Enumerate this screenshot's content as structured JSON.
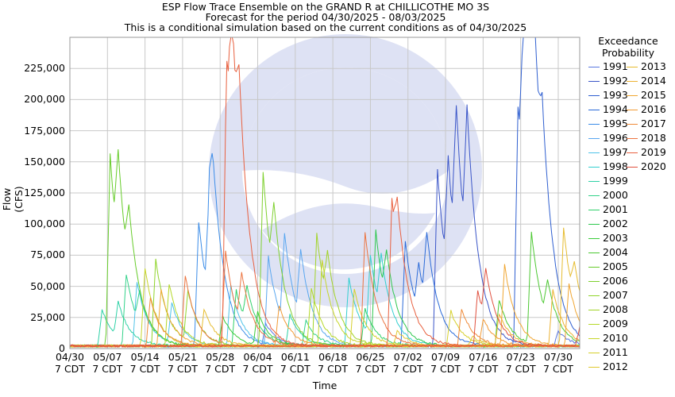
{
  "chart_data": {
    "type": "line",
    "title": "ESP Flow Trace Ensemble on the GRAND R at CHILLICOTHE MO 3S",
    "subtitle": "Forecast for the period 04/30/2025 - 08/03/2025",
    "subtitle2": "This is a conditional simulation based on the current conditions as of 04/30/2025",
    "xlabel": "Time",
    "ylabel": "Flow (CFS)",
    "ylim": [
      0,
      250000
    ],
    "xlim_days": [
      0,
      95
    ],
    "grid": true,
    "legend_title": "Exceedance\nProbability",
    "legend_title_line1": "Exceedance",
    "legend_title_line2": "Probability",
    "legend_placement": "right",
    "x_ticks": [
      {
        "day": 0,
        "line1": "04/30",
        "line2": "7 CDT"
      },
      {
        "day": 7,
        "line1": "05/07",
        "line2": "7 CDT"
      },
      {
        "day": 14,
        "line1": "05/14",
        "line2": "7 CDT"
      },
      {
        "day": 21,
        "line1": "05/21",
        "line2": "7 CDT"
      },
      {
        "day": 28,
        "line1": "05/28",
        "line2": "7 CDT"
      },
      {
        "day": 35,
        "line1": "06/04",
        "line2": "7 CDT"
      },
      {
        "day": 42,
        "line1": "06/11",
        "line2": "7 CDT"
      },
      {
        "day": 49,
        "line1": "06/18",
        "line2": "7 CDT"
      },
      {
        "day": 56,
        "line1": "06/25",
        "line2": "7 CDT"
      },
      {
        "day": 63,
        "line1": "07/02",
        "line2": "7 CDT"
      },
      {
        "day": 70,
        "line1": "07/09",
        "line2": "7 CDT"
      },
      {
        "day": 77,
        "line1": "07/16",
        "line2": "7 CDT"
      },
      {
        "day": 84,
        "line1": "07/23",
        "line2": "7 CDT"
      },
      {
        "day": 91,
        "line1": "07/30",
        "line2": "7 CDT"
      }
    ],
    "y_ticks": [
      {
        "value": 0,
        "label": "0"
      },
      {
        "value": 25000,
        "label": "25,000"
      },
      {
        "value": 50000,
        "label": "50,000"
      },
      {
        "value": 75000,
        "label": "75,000"
      },
      {
        "value": 100000,
        "label": "100,000"
      },
      {
        "value": 125000,
        "label": "125,000"
      },
      {
        "value": 150000,
        "label": "150,000"
      },
      {
        "value": 175000,
        "label": "175,000"
      },
      {
        "value": 200000,
        "label": "200,000"
      },
      {
        "value": 225000,
        "label": "225,000"
      }
    ],
    "series": [
      {
        "name": "1991",
        "color": "#5a78e0",
        "peaks": [
          [
            36.5,
            18000
          ],
          [
            91,
            12000
          ]
        ]
      },
      {
        "name": "1992",
        "color": "#3a55c8",
        "peaks": [
          [
            68.5,
            142000
          ],
          [
            70.5,
            95000
          ],
          [
            72,
            117000
          ],
          [
            74,
            115000
          ]
        ]
      },
      {
        "name": "1993",
        "color": "#2f5fd0",
        "peaks": [
          [
            83.5,
            193000
          ],
          [
            84.5,
            140000
          ],
          [
            85.2,
            167000
          ],
          [
            86.5,
            85000
          ],
          [
            88,
            60000
          ]
        ]
      },
      {
        "name": "1994",
        "color": "#2a6ad8",
        "peaks": [
          [
            62.5,
            84000
          ],
          [
            65,
            40000
          ],
          [
            66.5,
            58000
          ]
        ]
      },
      {
        "name": "1995",
        "color": "#3b8ce8",
        "peaks": [
          [
            24,
            100000
          ],
          [
            26,
            88000
          ],
          [
            26.6,
            60000
          ]
        ]
      },
      {
        "name": "1996",
        "color": "#58a6f0",
        "peaks": [
          [
            37,
            72000
          ],
          [
            40,
            73000
          ],
          [
            43,
            55000
          ]
        ]
      },
      {
        "name": "1997",
        "color": "#4fc3e8",
        "peaks": [
          [
            12.5,
            52000
          ],
          [
            19,
            32000
          ],
          [
            30,
            48000
          ]
        ]
      },
      {
        "name": "1998",
        "color": "#33cfd0",
        "peaks": [
          [
            52,
            55000
          ],
          [
            56,
            64000
          ],
          [
            58,
            45000
          ]
        ]
      },
      {
        "name": "1999",
        "color": "#2ed1a6",
        "peaks": [
          [
            6,
            30000
          ],
          [
            9,
            28000
          ],
          [
            41,
            25000
          ]
        ]
      },
      {
        "name": "2000",
        "color": "#33d28a",
        "peaks": [
          [
            10.5,
            58000
          ],
          [
            13,
            26000
          ],
          [
            44,
            20000
          ]
        ]
      },
      {
        "name": "2001",
        "color": "#30d06a",
        "peaks": [
          [
            31,
            45000
          ],
          [
            33,
            30000
          ],
          [
            55,
            30000
          ]
        ]
      },
      {
        "name": "2002",
        "color": "#2ec84e",
        "peaks": [
          [
            57,
            93000
          ],
          [
            59,
            40000
          ]
        ]
      },
      {
        "name": "2003",
        "color": "#3acc3a",
        "peaks": [
          [
            28.5,
            24000
          ],
          [
            35,
            26000
          ]
        ]
      },
      {
        "name": "2004",
        "color": "#4cc832",
        "peaks": [
          [
            80,
            37000
          ],
          [
            86,
            90000
          ],
          [
            89,
            30000
          ]
        ]
      },
      {
        "name": "2005",
        "color": "#66cc2a",
        "peaks": [
          [
            7.5,
            155000
          ],
          [
            9,
            80000
          ],
          [
            11,
            50000
          ]
        ]
      },
      {
        "name": "2006",
        "color": "#7ed02e",
        "peaks": [
          [
            36,
            140000
          ],
          [
            38,
            60000
          ]
        ]
      },
      {
        "name": "2007",
        "color": "#8fd42a",
        "peaks": [
          [
            16,
            70000
          ],
          [
            22,
            40000
          ]
        ]
      },
      {
        "name": "2008",
        "color": "#a2d428",
        "peaks": [
          [
            46,
            91000
          ],
          [
            48,
            40000
          ]
        ]
      },
      {
        "name": "2009",
        "color": "#b4d828",
        "peaks": [
          [
            18.5,
            50000
          ],
          [
            45,
            47000
          ]
        ]
      },
      {
        "name": "2010",
        "color": "#c7d52a",
        "peaks": [
          [
            14,
            63000
          ],
          [
            47,
            70000
          ]
        ]
      },
      {
        "name": "2011",
        "color": "#d6d02c",
        "peaks": [
          [
            53,
            46000
          ],
          [
            71,
            28000
          ]
        ]
      },
      {
        "name": "2012",
        "color": "#e0c82e",
        "peaks": [
          [
            61,
            12000
          ],
          [
            75,
            8000
          ]
        ]
      },
      {
        "name": "2013",
        "color": "#e6bc30",
        "peaks": [
          [
            25,
            30000
          ],
          [
            92,
            95000
          ],
          [
            94,
            30000
          ]
        ]
      },
      {
        "name": "2014",
        "color": "#ecb232",
        "peaks": [
          [
            80,
            26000
          ],
          [
            90,
            45000
          ]
        ]
      },
      {
        "name": "2015",
        "color": "#f0a632",
        "peaks": [
          [
            17,
            45000
          ],
          [
            81,
            65000
          ],
          [
            93,
            50000
          ]
        ]
      },
      {
        "name": "2016",
        "color": "#f29a34",
        "peaks": [
          [
            39,
            33000
          ],
          [
            77,
            22000
          ]
        ]
      },
      {
        "name": "2017",
        "color": "#ef8a38",
        "peaks": [
          [
            15,
            38000
          ],
          [
            73,
            30000
          ]
        ]
      },
      {
        "name": "2018",
        "color": "#ec7440",
        "peaks": [
          [
            21.5,
            57000
          ],
          [
            29,
            75000
          ],
          [
            32,
            40000
          ],
          [
            55,
            92000
          ]
        ]
      },
      {
        "name": "2019",
        "color": "#e8603f",
        "peaks": [
          [
            29.2,
            235000
          ],
          [
            30.2,
            130000
          ],
          [
            31.5,
            72000
          ],
          [
            60,
            118000
          ],
          [
            61,
            45000
          ]
        ]
      },
      {
        "name": "2020",
        "color": "#e0503e",
        "peaks": [
          [
            76,
            45000
          ],
          [
            77.5,
            40000
          ],
          [
            95,
            15000
          ]
        ]
      }
    ]
  }
}
